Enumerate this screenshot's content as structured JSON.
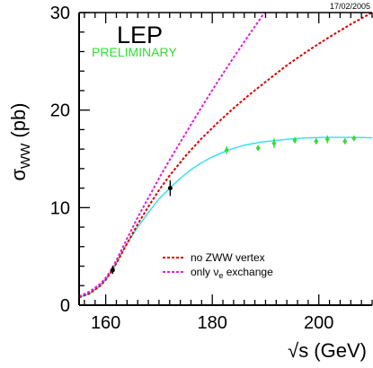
{
  "chart_data": {
    "type": "line",
    "title": "LEP",
    "subtitle": "PRELIMINARY",
    "date": "17/02/2005",
    "xlabel": "√s (GeV)",
    "ylabel_main": "σ",
    "ylabel_sub": "WW",
    "ylabel_unit": "(pb)",
    "xlim": [
      155,
      210
    ],
    "ylim": [
      0,
      30
    ],
    "xticks": [
      160,
      180,
      200
    ],
    "yticks": [
      0,
      10,
      20,
      30
    ],
    "x_minor_step": 2,
    "y_minor_step": 2,
    "grid": false,
    "legend_position": "bottom-right",
    "colors": {
      "sm_prediction": "#33ddee",
      "no_zww": "#dd0000",
      "only_nue": "#dd22dd",
      "lep_points": "#33dd33",
      "early_points": "#000000",
      "preliminary": "#33dd33"
    },
    "legend": [
      {
        "key": "no_zww",
        "label": "no ZWW vertex",
        "style": "dashed"
      },
      {
        "key": "only_nue",
        "label_main": "only ν",
        "label_sub": "e",
        "label_tail": " exchange",
        "style": "dashed"
      }
    ],
    "series": [
      {
        "key": "sm_prediction",
        "style": "solid",
        "x": [
          155,
          157,
          159,
          160,
          161,
          162,
          163,
          164,
          166,
          168,
          170,
          172,
          174,
          176,
          178,
          180,
          183,
          186,
          189,
          192,
          195,
          198,
          201,
          204,
          207,
          210
        ],
        "y": [
          0.8,
          1.2,
          2.0,
          2.6,
          3.4,
          4.3,
          5.3,
          6.3,
          8.0,
          9.5,
          10.9,
          12.0,
          13.0,
          13.9,
          14.6,
          15.2,
          15.9,
          16.4,
          16.7,
          16.9,
          17.05,
          17.15,
          17.2,
          17.2,
          17.2,
          17.15
        ]
      },
      {
        "key": "no_zww",
        "style": "dashed",
        "x": [
          155,
          157,
          159,
          160,
          161,
          162,
          164,
          166,
          168,
          170,
          172,
          175,
          178,
          181,
          184,
          187,
          190,
          194,
          198,
          202,
          206,
          210
        ],
        "y": [
          0.8,
          1.2,
          2.0,
          2.6,
          3.4,
          4.3,
          6.3,
          8.3,
          10.1,
          11.8,
          13.3,
          15.3,
          17.1,
          18.7,
          20.2,
          21.6,
          22.9,
          24.6,
          26.1,
          27.5,
          28.8,
          30.0
        ]
      },
      {
        "key": "only_nue",
        "style": "dashed",
        "x": [
          155,
          157,
          159,
          160,
          161,
          162,
          164,
          166,
          168,
          170,
          172,
          175,
          178,
          181,
          184,
          187,
          189.8
        ],
        "y": [
          0.9,
          1.4,
          2.2,
          2.8,
          3.6,
          4.6,
          6.8,
          9.0,
          11.0,
          13.0,
          14.9,
          17.6,
          20.3,
          22.9,
          25.4,
          27.8,
          30.0
        ]
      }
    ],
    "points": [
      {
        "x": 161.3,
        "y": 3.6,
        "err": 0.4,
        "set": "early_points"
      },
      {
        "x": 172.1,
        "y": 12.0,
        "err": 0.8,
        "set": "early_points"
      },
      {
        "x": 182.7,
        "y": 15.9,
        "err": 0.4,
        "set": "lep_points"
      },
      {
        "x": 188.6,
        "y": 16.1,
        "err": 0.2,
        "set": "lep_points"
      },
      {
        "x": 191.6,
        "y": 16.6,
        "err": 0.5,
        "set": "lep_points"
      },
      {
        "x": 195.5,
        "y": 16.9,
        "err": 0.3,
        "set": "lep_points"
      },
      {
        "x": 199.5,
        "y": 16.8,
        "err": 0.3,
        "set": "lep_points"
      },
      {
        "x": 201.6,
        "y": 17.0,
        "err": 0.4,
        "set": "lep_points"
      },
      {
        "x": 204.9,
        "y": 16.8,
        "err": 0.3,
        "set": "lep_points"
      },
      {
        "x": 206.6,
        "y": 17.1,
        "err": 0.2,
        "set": "lep_points"
      }
    ]
  }
}
